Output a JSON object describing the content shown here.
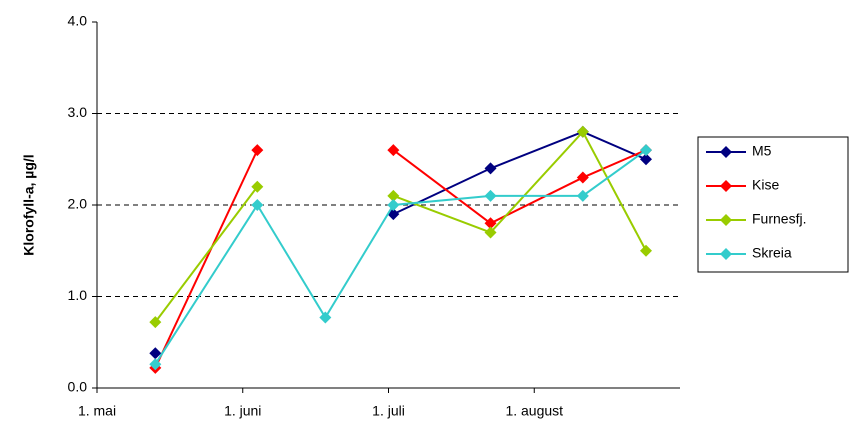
{
  "chart_data": {
    "type": "line",
    "y_label": "Klorofyll-a, µg/l",
    "x": [
      12,
      33,
      47,
      61,
      81,
      100,
      113
    ],
    "xlim": [
      0,
      120
    ],
    "xticks": [
      {
        "value": 0,
        "label": "1. mai"
      },
      {
        "value": 30,
        "label": "1. juni"
      },
      {
        "value": 60,
        "label": "1. juli"
      },
      {
        "value": 90,
        "label": "1. august"
      }
    ],
    "ylim": [
      0,
      4
    ],
    "yticks": [
      {
        "value": 0,
        "label": "0.0"
      },
      {
        "value": 1,
        "label": "1.0"
      },
      {
        "value": 2,
        "label": "2.0"
      },
      {
        "value": 3,
        "label": "3.0"
      },
      {
        "value": 4,
        "label": "4.0"
      }
    ],
    "grid": true,
    "legend": "right",
    "series": [
      {
        "name": "M5",
        "color": "#000080",
        "values": [
          0.38,
          null,
          null,
          1.9,
          2.4,
          2.8,
          2.5
        ]
      },
      {
        "name": "Kise",
        "color": "#ff0000",
        "values": [
          0.22,
          2.6,
          null,
          2.6,
          1.8,
          2.3,
          2.6
        ]
      },
      {
        "name": "Furnesfj.",
        "color": "#99cc00",
        "values": [
          0.72,
          2.2,
          null,
          2.1,
          1.7,
          2.8,
          1.5
        ]
      },
      {
        "name": "Skreia",
        "color": "#33cccc",
        "values": [
          0.26,
          2.0,
          0.77,
          2.0,
          2.1,
          2.1,
          2.6
        ]
      }
    ]
  }
}
